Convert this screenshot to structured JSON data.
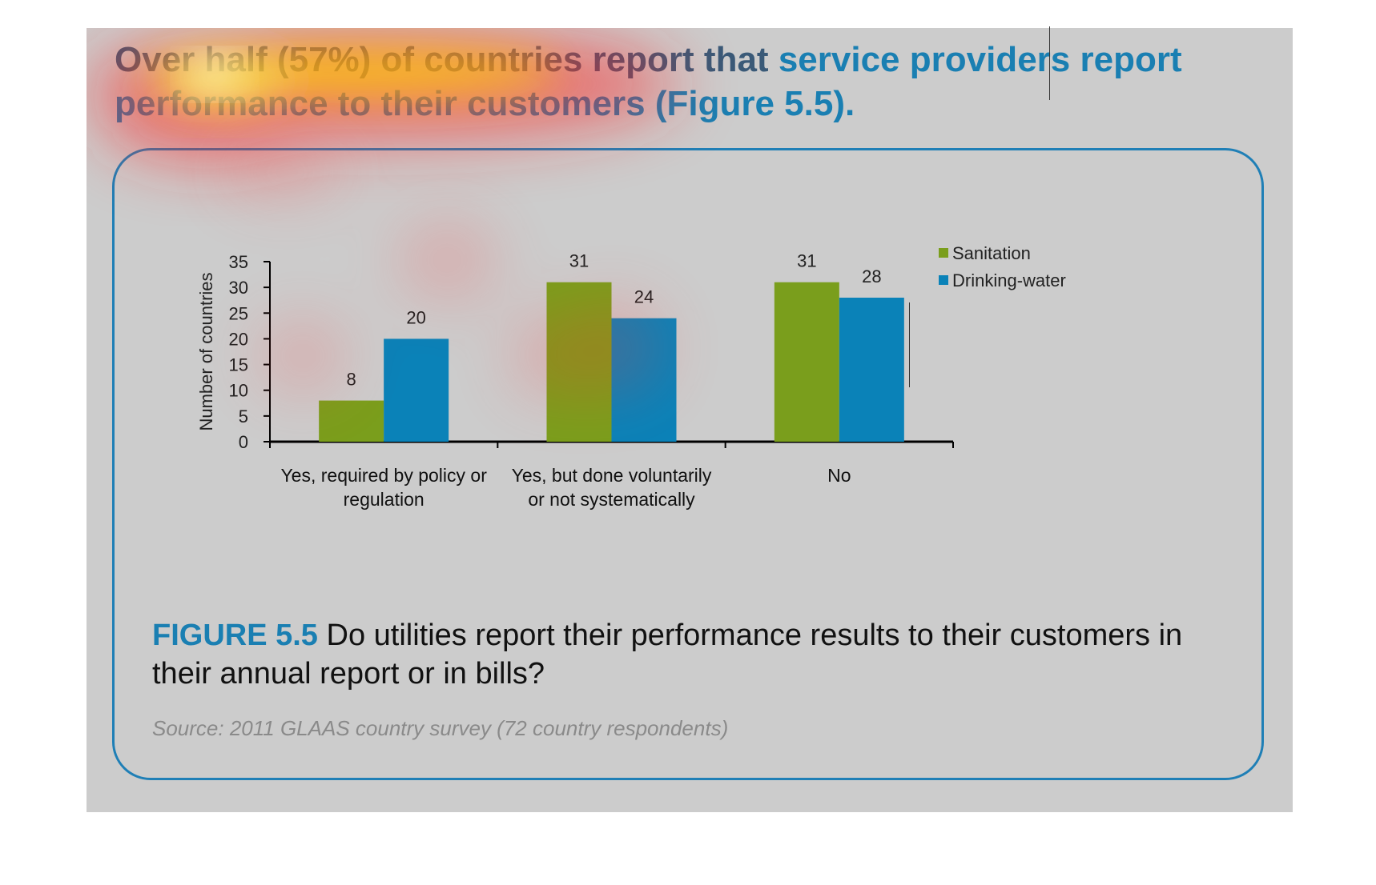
{
  "heading": {
    "part1": "Over half (57%) of countries report that ",
    "part2": "service providers report performance to their customers (Figure 5.5)."
  },
  "caption": {
    "label": "FIGURE 5.5",
    "text": " Do utilities report their performance results to their customers in their annual report or in bills?"
  },
  "source": "Source: 2011 GLAAS country survey (72 country respondents)",
  "colors": {
    "slide_background": "#cccccc",
    "heading": "#3a5a78",
    "accent": "#1a7fb2",
    "card_border": "#1f7fb6",
    "sanitation": "#7a9e1c",
    "drinking_water": "#0a82b8"
  },
  "chart_data": {
    "type": "bar",
    "categories": [
      "Yes, required by policy or regulation",
      "Yes, but done voluntarily or not systematically",
      "No"
    ],
    "category_lines": [
      [
        "Yes, required by policy or",
        "regulation"
      ],
      [
        "Yes, but done voluntarily",
        "or not systematically"
      ],
      [
        "No"
      ]
    ],
    "series": [
      {
        "name": "Sanitation",
        "values": [
          8,
          31,
          31
        ],
        "color": "#7a9e1c"
      },
      {
        "name": "Drinking-water",
        "values": [
          20,
          24,
          28
        ],
        "color": "#0a82b8"
      }
    ],
    "ylabel": "Number of countries",
    "ylim": [
      0,
      35
    ],
    "yticks": [
      0,
      5,
      10,
      15,
      20,
      25,
      30,
      35
    ],
    "data_labels": true,
    "grid": false,
    "legend": "top-right"
  }
}
